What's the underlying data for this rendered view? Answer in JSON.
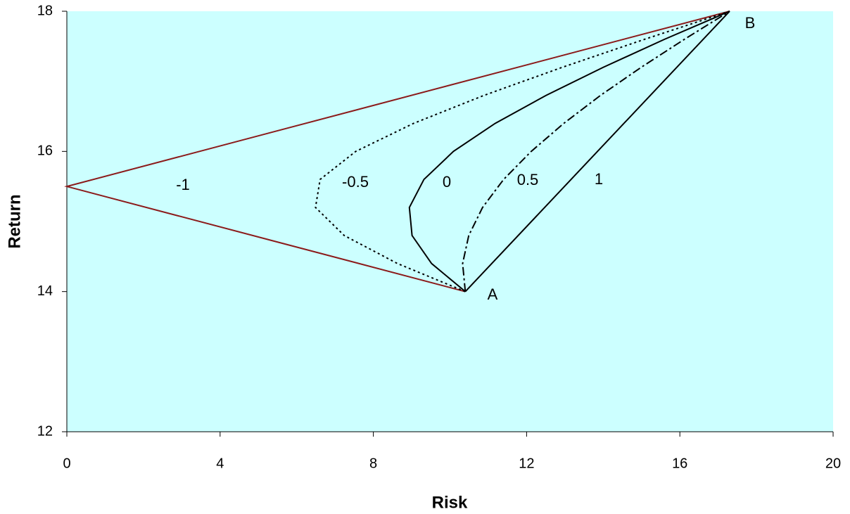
{
  "chart_data": {
    "type": "line",
    "xlabel": "Risk",
    "ylabel": "Return",
    "xlim": [
      0,
      20
    ],
    "ylim": [
      12,
      18
    ],
    "xticks": [
      0,
      4,
      8,
      12,
      16,
      20
    ],
    "yticks": [
      12,
      14,
      16,
      18
    ],
    "background": "#ccffff",
    "point_labels": [
      "A",
      "B"
    ],
    "series": [
      {
        "name": "-1",
        "color": "#8b1a1a",
        "dash": "solid",
        "x": [
          10.4,
          0,
          17.3
        ],
        "values": [
          14,
          15.5,
          18
        ]
      },
      {
        "name": "-0.5",
        "color": "#000000",
        "dash": "dotted",
        "x": [
          10.4,
          8.63,
          7.24,
          6.49,
          6.61,
          7.54,
          9.05,
          10.89,
          12.93,
          15.08,
          17.3
        ],
        "values": [
          14,
          14.4,
          14.8,
          15.2,
          15.6,
          16,
          16.4,
          16.8,
          17.2,
          17.6,
          18
        ]
      },
      {
        "name": "0",
        "color": "#000000",
        "dash": "solid",
        "x": [
          10.4,
          9.52,
          9.01,
          8.94,
          9.32,
          10.09,
          11.18,
          12.51,
          14.0,
          15.6,
          17.3
        ],
        "values": [
          14,
          14.4,
          14.8,
          15.2,
          15.6,
          16,
          16.4,
          16.8,
          17.2,
          17.6,
          18
        ]
      },
      {
        "name": "0.5",
        "color": "#000000",
        "dash": "dashdot",
        "x": [
          10.4,
          10.33,
          10.49,
          10.85,
          11.4,
          12.12,
          12.97,
          13.93,
          14.99,
          16.12,
          17.3
        ],
        "values": [
          14,
          14.4,
          14.8,
          15.2,
          15.6,
          16,
          16.4,
          16.8,
          17.2,
          17.6,
          18
        ]
      },
      {
        "name": "1",
        "color": "#000000",
        "dash": "solid",
        "x": [
          10.4,
          17.3
        ],
        "values": [
          14,
          18
        ]
      }
    ]
  }
}
